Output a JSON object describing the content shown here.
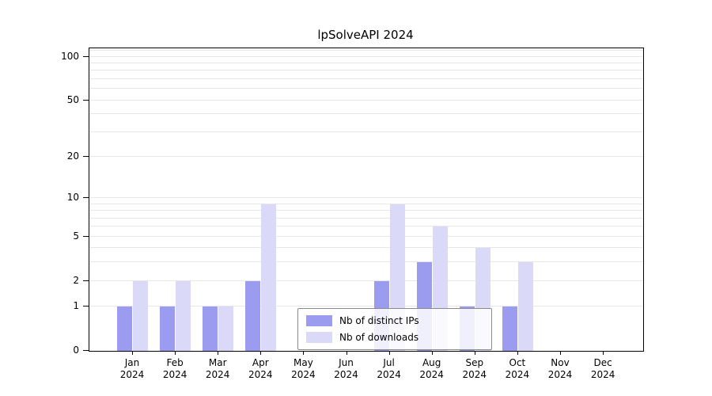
{
  "title": "lpSolveAPI 2024",
  "chart_data": {
    "type": "bar",
    "title": "lpSolveAPI 2024",
    "year": "2024",
    "categories": [
      "Jan",
      "Feb",
      "Mar",
      "Apr",
      "May",
      "Jun",
      "Jul",
      "Aug",
      "Sep",
      "Oct",
      "Nov",
      "Dec"
    ],
    "series": [
      {
        "name": "Nb of distinct IPs",
        "color": "#9b9bef",
        "values": [
          1,
          1,
          1,
          2,
          0,
          0,
          2,
          3,
          1,
          1,
          0,
          0
        ]
      },
      {
        "name": "Nb of downloads",
        "color": "#dadaf8",
        "values": [
          2,
          2,
          1,
          9,
          0,
          0,
          9,
          6,
          4,
          3,
          0,
          0
        ]
      }
    ],
    "y_scale": "log1p",
    "y_ticks": [
      0,
      1,
      2,
      5,
      10,
      20,
      50,
      100
    ],
    "gridlines": [
      1,
      2,
      3,
      4,
      5,
      6,
      7,
      8,
      9,
      10,
      20,
      30,
      40,
      50,
      60,
      70,
      80,
      90,
      100,
      110
    ],
    "ylim": [
      0,
      114
    ],
    "grid": true,
    "legend_position": "lower-center-inside"
  },
  "colors": {
    "background": "#ffffff",
    "axis": "#000000",
    "gridline": "#e7e7e7",
    "bar_distinct_ips": "#9b9bef",
    "bar_downloads": "#dadaf8"
  }
}
